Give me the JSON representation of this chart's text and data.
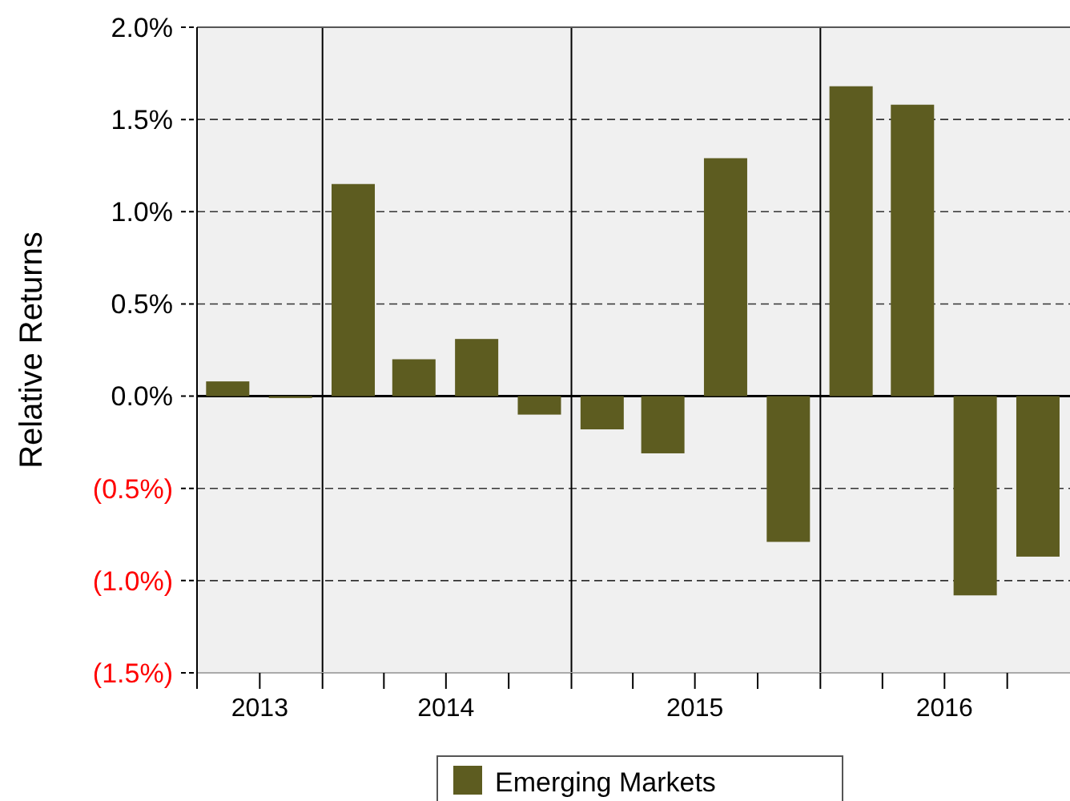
{
  "chart_data": {
    "type": "bar",
    "ylabel": "Relative Returns",
    "x": [
      "2013-08-15",
      "2013-11-15",
      "2014-02-15",
      "2014-05-15",
      "2014-08-15",
      "2014-11-15",
      "2015-02-15",
      "2015-05-15",
      "2015-08-15",
      "2015-11-15",
      "2016-02-15",
      "2016-05-15",
      "2016-08-15",
      "2016-11-15"
    ],
    "series": [
      {
        "name": "Emerging Markets",
        "color": "#5d5c20",
        "values": [
          0.08,
          -0.01,
          1.15,
          0.2,
          0.31,
          -0.1,
          -0.18,
          -0.31,
          1.29,
          -0.79,
          1.68,
          1.58,
          -1.08,
          -0.87
        ]
      }
    ],
    "xlim": [
      "2013-07-01",
      "2017-01-01"
    ],
    "xticks": [
      {
        "value": "2013-07-01",
        "label": null
      },
      {
        "value": "2013-10-01",
        "label": "2013"
      },
      {
        "value": "2014-01-01",
        "label": null
      },
      {
        "value": "2014-04-01",
        "label": null
      },
      {
        "value": "2014-07-01",
        "label": "2014"
      },
      {
        "value": "2014-10-01",
        "label": null
      },
      {
        "value": "2015-01-01",
        "label": null
      },
      {
        "value": "2015-04-01",
        "label": null
      },
      {
        "value": "2015-07-01",
        "label": "2015"
      },
      {
        "value": "2015-10-01",
        "label": null
      },
      {
        "value": "2016-01-01",
        "label": null
      },
      {
        "value": "2016-04-01",
        "label": null
      },
      {
        "value": "2016-07-01",
        "label": "2016"
      },
      {
        "value": "2016-10-01",
        "label": null
      }
    ],
    "ylim": [
      -1.5,
      2
    ],
    "yticks": [
      {
        "value": -1.5,
        "label": "(1.5%)"
      },
      {
        "value": -1,
        "label": "(1.0%)"
      },
      {
        "value": -0.5,
        "label": "(0.5%)"
      },
      {
        "value": 0,
        "label": "0.0%"
      },
      {
        "value": 0.5,
        "label": "0.5%"
      },
      {
        "value": 1,
        "label": "1.0%"
      },
      {
        "value": 1.5,
        "label": "1.5%"
      },
      {
        "value": 2,
        "label": "2.0%"
      }
    ],
    "ref_lines": [
      {
        "axis": "x",
        "value": "2014-01-01",
        "color": "#000000"
      },
      {
        "axis": "x",
        "value": "2015-01-01",
        "color": "#000000"
      },
      {
        "axis": "x",
        "value": "2016-01-01",
        "color": "#000000"
      }
    ],
    "grid": "y",
    "legend": "bottom"
  }
}
